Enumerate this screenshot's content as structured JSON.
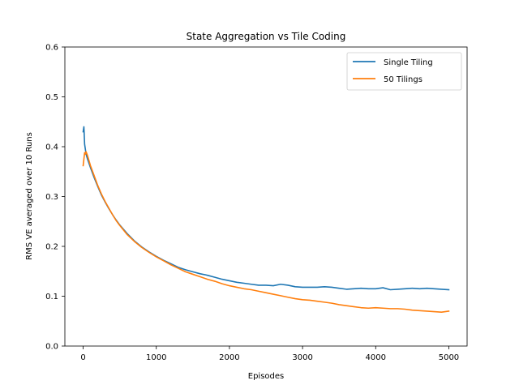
{
  "chart_data": {
    "type": "line",
    "title": "State Aggregation vs Tile Coding",
    "xlabel": "Episodes",
    "ylabel": "RMS VE averaged over 10 Runs",
    "xlim": [
      -250,
      5250
    ],
    "ylim": [
      0.0,
      0.6
    ],
    "xticks": [
      0,
      1000,
      2000,
      3000,
      4000,
      5000
    ],
    "yticks": [
      0.0,
      0.1,
      0.2,
      0.3,
      0.4,
      0.5,
      0.6
    ],
    "xtick_labels": [
      "0",
      "1000",
      "2000",
      "3000",
      "4000",
      "5000"
    ],
    "ytick_labels": [
      "0.0",
      "0.1",
      "0.2",
      "0.3",
      "0.4",
      "0.5",
      "0.6"
    ],
    "grid": false,
    "legend_position": "top-right",
    "series": [
      {
        "name": "Single Tiling",
        "color": "#1f77b4",
        "x": [
          0,
          10,
          20,
          30,
          40,
          60,
          100,
          150,
          200,
          250,
          300,
          350,
          400,
          450,
          500,
          600,
          700,
          800,
          900,
          1000,
          1100,
          1200,
          1300,
          1400,
          1500,
          1600,
          1700,
          1800,
          1900,
          2000,
          2100,
          2200,
          2300,
          2400,
          2500,
          2600,
          2700,
          2800,
          2900,
          3000,
          3100,
          3200,
          3300,
          3400,
          3500,
          3600,
          3700,
          3800,
          3900,
          4000,
          4100,
          4200,
          4300,
          4400,
          4500,
          4600,
          4700,
          4800,
          4900,
          5000
        ],
        "y": [
          0.43,
          0.44,
          0.405,
          0.395,
          0.385,
          0.375,
          0.358,
          0.338,
          0.32,
          0.303,
          0.289,
          0.276,
          0.264,
          0.253,
          0.243,
          0.226,
          0.211,
          0.199,
          0.189,
          0.18,
          0.172,
          0.165,
          0.158,
          0.153,
          0.149,
          0.145,
          0.142,
          0.138,
          0.134,
          0.131,
          0.128,
          0.126,
          0.124,
          0.122,
          0.122,
          0.121,
          0.124,
          0.122,
          0.119,
          0.118,
          0.118,
          0.118,
          0.119,
          0.118,
          0.116,
          0.114,
          0.115,
          0.116,
          0.115,
          0.115,
          0.117,
          0.113,
          0.114,
          0.115,
          0.116,
          0.115,
          0.116,
          0.115,
          0.114,
          0.113
        ]
      },
      {
        "name": "50 Tilings",
        "color": "#ff7f0e",
        "x": [
          0,
          10,
          20,
          30,
          40,
          60,
          100,
          150,
          200,
          250,
          300,
          350,
          400,
          450,
          500,
          600,
          700,
          800,
          900,
          1000,
          1100,
          1200,
          1300,
          1400,
          1500,
          1600,
          1700,
          1800,
          1900,
          2000,
          2100,
          2200,
          2300,
          2400,
          2500,
          2600,
          2700,
          2800,
          2900,
          3000,
          3100,
          3200,
          3300,
          3400,
          3500,
          3600,
          3700,
          3800,
          3900,
          4000,
          4100,
          4200,
          4300,
          4400,
          4500,
          4600,
          4700,
          4800,
          4900,
          5000
        ],
        "y": [
          0.362,
          0.375,
          0.388,
          0.385,
          0.39,
          0.382,
          0.362,
          0.342,
          0.322,
          0.305,
          0.29,
          0.277,
          0.264,
          0.252,
          0.242,
          0.224,
          0.21,
          0.198,
          0.188,
          0.179,
          0.171,
          0.163,
          0.156,
          0.149,
          0.144,
          0.139,
          0.134,
          0.13,
          0.125,
          0.121,
          0.118,
          0.115,
          0.113,
          0.11,
          0.107,
          0.104,
          0.101,
          0.098,
          0.095,
          0.093,
          0.092,
          0.09,
          0.088,
          0.086,
          0.083,
          0.081,
          0.079,
          0.077,
          0.076,
          0.077,
          0.076,
          0.075,
          0.075,
          0.074,
          0.072,
          0.071,
          0.07,
          0.069,
          0.068,
          0.07
        ]
      }
    ]
  }
}
